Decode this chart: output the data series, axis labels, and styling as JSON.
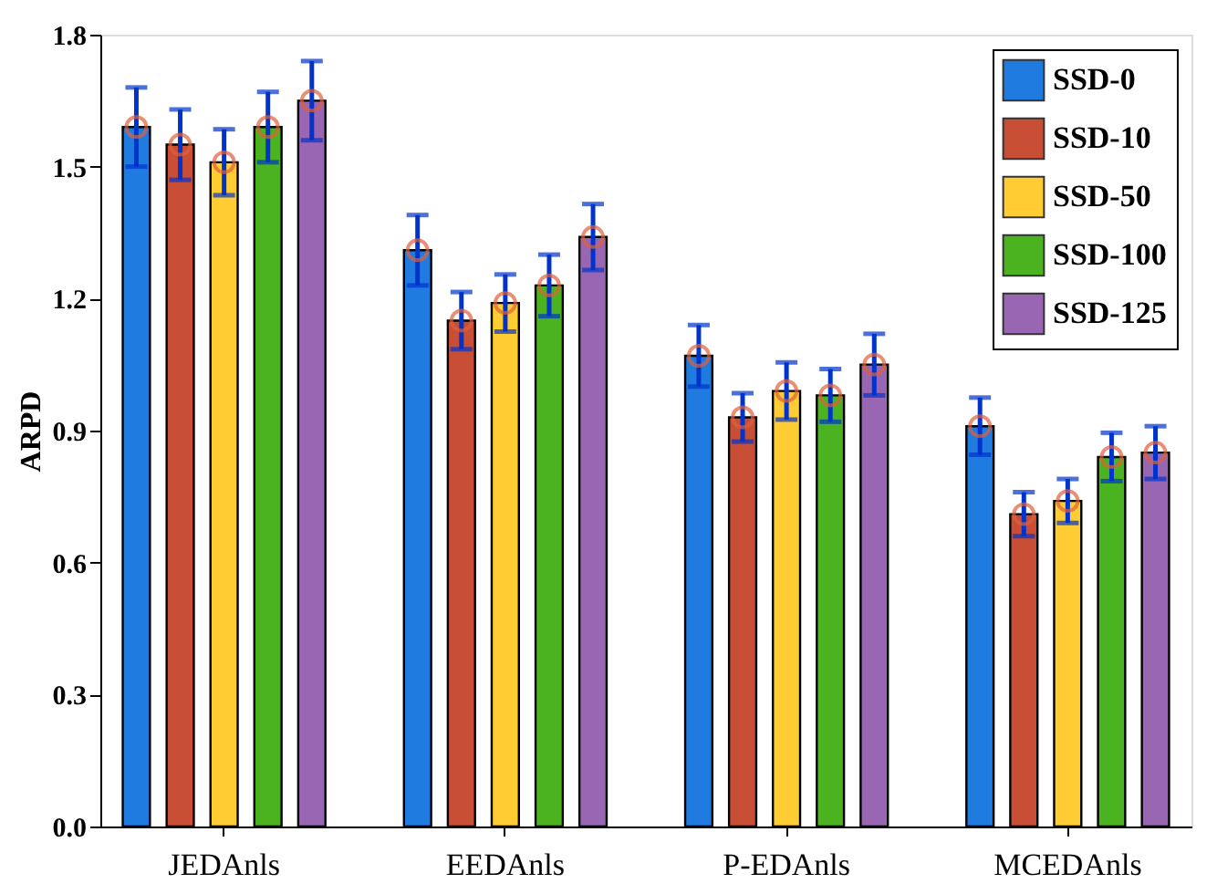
{
  "chart_data": {
    "type": "bar",
    "ylabel": "ARPD",
    "categories": [
      "JEDAnls",
      "EEDAnls",
      "P-EDAnls",
      "MCEDAnls"
    ],
    "ylim": [
      0,
      1.8
    ],
    "yticks": [
      {
        "value": 0,
        "label": "0.0"
      },
      {
        "value": 0.3,
        "label": "0.3"
      },
      {
        "value": 0.6,
        "label": "0.6"
      },
      {
        "value": 0.9,
        "label": "0.9"
      },
      {
        "value": 1.2,
        "label": "1.2"
      },
      {
        "value": 1.5,
        "label": "1.5"
      },
      {
        "value": 1.8,
        "label": "1.8"
      }
    ],
    "grid": false,
    "legend": "top right",
    "series": [
      {
        "name": "SSD-0",
        "color": "#1f7be0",
        "values": [
          1.59,
          1.31,
          1.07,
          0.91
        ],
        "errors": [
          0.09,
          0.08,
          0.07,
          0.065
        ]
      },
      {
        "name": "SSD-10",
        "color": "#c84f35",
        "values": [
          1.55,
          1.15,
          0.93,
          0.71
        ],
        "errors": [
          0.08,
          0.065,
          0.055,
          0.05
        ]
      },
      {
        "name": "SSD-50",
        "color": "#ffcc33",
        "values": [
          1.51,
          1.19,
          0.99,
          0.74
        ],
        "errors": [
          0.075,
          0.065,
          0.065,
          0.05
        ]
      },
      {
        "name": "SSD-100",
        "color": "#4bb31f",
        "values": [
          1.59,
          1.23,
          0.98,
          0.84
        ],
        "errors": [
          0.08,
          0.07,
          0.06,
          0.055
        ]
      },
      {
        "name": "SSD-125",
        "color": "#9966b3",
        "values": [
          1.65,
          1.34,
          1.05,
          0.85
        ],
        "errors": [
          0.09,
          0.075,
          0.07,
          0.06
        ]
      },
      {
        "type": "scatter",
        "marker": "circle",
        "color": "#e0603a",
        "x": [
          "JEDAnls",
          "EEDAnls",
          "P-EDAnls",
          "MCEDAnls"
        ],
        "values": [
          1.59,
          1.31,
          1.07,
          0.91
        ]
      },
      {
        "type": "scatter",
        "marker": "circle",
        "color": "#e0603a",
        "x": [
          "JEDAnls",
          "EEDAnls",
          "P-EDAnls",
          "MCEDAnls"
        ],
        "values": [
          1.55,
          1.15,
          0.93,
          0.71
        ]
      },
      {
        "type": "scatter",
        "marker": "circle",
        "color": "#e0603a",
        "x": [
          "JEDAnls",
          "EEDAnls",
          "P-EDAnls",
          "MCEDAnls"
        ],
        "values": [
          1.51,
          1.19,
          0.99,
          0.74
        ]
      },
      {
        "type": "scatter",
        "marker": "circle",
        "color": "#e0603a",
        "x": [
          "JEDAnls",
          "EEDAnls",
          "P-EDAnls",
          "MCEDAnls"
        ],
        "values": [
          1.59,
          1.23,
          0.98,
          0.84
        ]
      },
      {
        "type": "scatter",
        "marker": "circle",
        "color": "#e0603a",
        "x": [
          "JEDAnls",
          "EEDAnls",
          "P-EDAnls",
          "MCEDAnls"
        ],
        "values": [
          1.65,
          1.34,
          1.05,
          0.85
        ]
      }
    ]
  }
}
